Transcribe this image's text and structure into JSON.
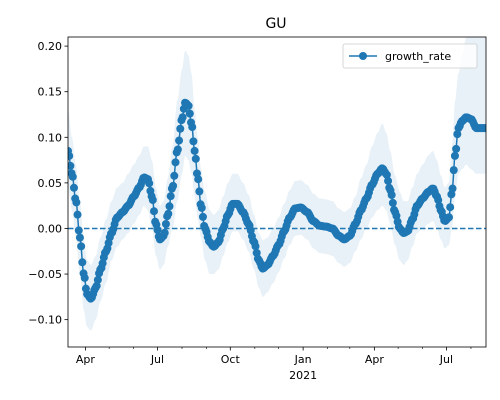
{
  "chart_data": {
    "type": "line",
    "title": "GU",
    "xlabel": "",
    "ylabel": "",
    "x_start": "2020-03-10",
    "x_end": "2021-08-20",
    "ylim": [
      -0.13,
      0.21
    ],
    "x_ticks": [
      {
        "date": "2020-04-01",
        "label": "Apr",
        "sublabel": ""
      },
      {
        "date": "2020-07-01",
        "label": "Jul",
        "sublabel": ""
      },
      {
        "date": "2020-10-01",
        "label": "Oct",
        "sublabel": ""
      },
      {
        "date": "2021-01-01",
        "label": "Jan",
        "sublabel": "2021"
      },
      {
        "date": "2021-04-01",
        "label": "Apr",
        "sublabel": ""
      },
      {
        "date": "2021-07-01",
        "label": "Jul",
        "sublabel": ""
      }
    ],
    "x_minor_ticks": [
      "2020-05-01",
      "2020-06-01",
      "2020-08-01",
      "2020-09-01",
      "2020-11-01",
      "2020-12-01",
      "2021-02-01",
      "2021-03-01",
      "2021-05-01",
      "2021-06-01",
      "2021-08-01"
    ],
    "y_ticks": [
      -0.1,
      -0.05,
      0.0,
      0.05,
      0.1,
      0.15,
      0.2
    ],
    "y_tick_labels": [
      "−0.10",
      "−0.05",
      "0.00",
      "0.05",
      "0.10",
      "0.15",
      "0.20"
    ],
    "reference_line": {
      "y": 0.0,
      "style": "dashed"
    },
    "legend": {
      "position": "upper-right",
      "entries": [
        "growth_rate"
      ]
    },
    "series": [
      {
        "name": "growth_rate",
        "color": "#1f77b4",
        "band_color": "#1f77b4",
        "marker": "circle",
        "points": [
          {
            "x": "2020-03-10",
            "y": 0.085,
            "lo": 0.045,
            "hi": 0.13
          },
          {
            "x": "2020-03-15",
            "y": 0.06,
            "lo": 0.02,
            "hi": 0.1
          },
          {
            "x": "2020-03-20",
            "y": 0.03,
            "lo": -0.01,
            "hi": 0.07
          },
          {
            "x": "2020-03-25",
            "y": -0.01,
            "lo": -0.05,
            "hi": 0.03
          },
          {
            "x": "2020-03-30",
            "y": -0.05,
            "lo": -0.09,
            "hi": -0.01
          },
          {
            "x": "2020-04-03",
            "y": -0.072,
            "lo": -0.108,
            "hi": -0.035
          },
          {
            "x": "2020-04-08",
            "y": -0.077,
            "lo": -0.112,
            "hi": -0.04
          },
          {
            "x": "2020-04-14",
            "y": -0.065,
            "lo": -0.1,
            "hi": -0.03
          },
          {
            "x": "2020-04-20",
            "y": -0.045,
            "lo": -0.08,
            "hi": -0.01
          },
          {
            "x": "2020-04-27",
            "y": -0.025,
            "lo": -0.06,
            "hi": 0.01
          },
          {
            "x": "2020-05-04",
            "y": -0.005,
            "lo": -0.035,
            "hi": 0.03
          },
          {
            "x": "2020-05-11",
            "y": 0.012,
            "lo": -0.02,
            "hi": 0.045
          },
          {
            "x": "2020-05-18",
            "y": 0.018,
            "lo": -0.012,
            "hi": 0.05
          },
          {
            "x": "2020-05-25",
            "y": 0.025,
            "lo": -0.005,
            "hi": 0.06
          },
          {
            "x": "2020-06-01",
            "y": 0.035,
            "lo": 0.005,
            "hi": 0.07
          },
          {
            "x": "2020-06-08",
            "y": 0.045,
            "lo": 0.015,
            "hi": 0.08
          },
          {
            "x": "2020-06-14",
            "y": 0.056,
            "lo": 0.025,
            "hi": 0.09
          },
          {
            "x": "2020-06-19",
            "y": 0.054,
            "lo": 0.02,
            "hi": 0.09
          },
          {
            "x": "2020-06-24",
            "y": 0.035,
            "lo": 0.0,
            "hi": 0.075
          },
          {
            "x": "2020-06-29",
            "y": 0.005,
            "lo": -0.03,
            "hi": 0.045
          },
          {
            "x": "2020-07-04",
            "y": -0.012,
            "lo": -0.045,
            "hi": 0.025
          },
          {
            "x": "2020-07-09",
            "y": -0.008,
            "lo": -0.04,
            "hi": 0.03
          },
          {
            "x": "2020-07-14",
            "y": 0.015,
            "lo": -0.02,
            "hi": 0.055
          },
          {
            "x": "2020-07-20",
            "y": 0.045,
            "lo": 0.0,
            "hi": 0.09
          },
          {
            "x": "2020-07-26",
            "y": 0.085,
            "lo": 0.03,
            "hi": 0.14
          },
          {
            "x": "2020-08-01",
            "y": 0.12,
            "lo": 0.06,
            "hi": 0.175
          },
          {
            "x": "2020-08-05",
            "y": 0.138,
            "lo": 0.08,
            "hi": 0.195
          },
          {
            "x": "2020-08-09",
            "y": 0.135,
            "lo": 0.075,
            "hi": 0.19
          },
          {
            "x": "2020-08-13",
            "y": 0.115,
            "lo": 0.06,
            "hi": 0.17
          },
          {
            "x": "2020-08-17",
            "y": 0.085,
            "lo": 0.035,
            "hi": 0.13
          },
          {
            "x": "2020-08-21",
            "y": 0.055,
            "lo": 0.01,
            "hi": 0.1
          },
          {
            "x": "2020-08-25",
            "y": 0.025,
            "lo": -0.01,
            "hi": 0.065
          },
          {
            "x": "2020-08-30",
            "y": 0.0,
            "lo": -0.035,
            "hi": 0.04
          },
          {
            "x": "2020-09-05",
            "y": -0.015,
            "lo": -0.05,
            "hi": 0.02
          },
          {
            "x": "2020-09-10",
            "y": -0.02,
            "lo": -0.05,
            "hi": 0.015
          },
          {
            "x": "2020-09-16",
            "y": -0.015,
            "lo": -0.045,
            "hi": 0.02
          },
          {
            "x": "2020-09-22",
            "y": 0.0,
            "lo": -0.03,
            "hi": 0.035
          },
          {
            "x": "2020-09-28",
            "y": 0.015,
            "lo": -0.015,
            "hi": 0.05
          },
          {
            "x": "2020-10-04",
            "y": 0.027,
            "lo": -0.003,
            "hi": 0.06
          },
          {
            "x": "2020-10-10",
            "y": 0.027,
            "lo": -0.003,
            "hi": 0.06
          },
          {
            "x": "2020-10-17",
            "y": 0.018,
            "lo": -0.012,
            "hi": 0.05
          },
          {
            "x": "2020-10-24",
            "y": 0.005,
            "lo": -0.025,
            "hi": 0.037
          },
          {
            "x": "2020-10-31",
            "y": -0.015,
            "lo": -0.045,
            "hi": 0.015
          },
          {
            "x": "2020-11-06",
            "y": -0.035,
            "lo": -0.065,
            "hi": -0.005
          },
          {
            "x": "2020-11-11",
            "y": -0.044,
            "lo": -0.075,
            "hi": -0.013
          },
          {
            "x": "2020-11-17",
            "y": -0.04,
            "lo": -0.07,
            "hi": -0.01
          },
          {
            "x": "2020-11-24",
            "y": -0.03,
            "lo": -0.06,
            "hi": 0.0
          },
          {
            "x": "2020-12-01",
            "y": -0.018,
            "lo": -0.048,
            "hi": 0.012
          },
          {
            "x": "2020-12-08",
            "y": -0.003,
            "lo": -0.033,
            "hi": 0.027
          },
          {
            "x": "2020-12-15",
            "y": 0.012,
            "lo": -0.018,
            "hi": 0.042
          },
          {
            "x": "2020-12-22",
            "y": 0.022,
            "lo": -0.008,
            "hi": 0.052
          },
          {
            "x": "2020-12-29",
            "y": 0.023,
            "lo": -0.007,
            "hi": 0.053
          },
          {
            "x": "2021-01-06",
            "y": 0.018,
            "lo": -0.012,
            "hi": 0.048
          },
          {
            "x": "2021-01-14",
            "y": 0.008,
            "lo": -0.022,
            "hi": 0.038
          },
          {
            "x": "2021-01-22",
            "y": 0.003,
            "lo": -0.027,
            "hi": 0.033
          },
          {
            "x": "2021-01-30",
            "y": 0.002,
            "lo": -0.028,
            "hi": 0.032
          },
          {
            "x": "2021-02-07",
            "y": 0.0,
            "lo": -0.03,
            "hi": 0.03
          },
          {
            "x": "2021-02-15",
            "y": -0.008,
            "lo": -0.038,
            "hi": 0.022
          },
          {
            "x": "2021-02-22",
            "y": -0.012,
            "lo": -0.042,
            "hi": 0.018
          },
          {
            "x": "2021-03-01",
            "y": -0.008,
            "lo": -0.038,
            "hi": 0.022
          },
          {
            "x": "2021-03-08",
            "y": 0.005,
            "lo": -0.025,
            "hi": 0.035
          },
          {
            "x": "2021-03-15",
            "y": 0.02,
            "lo": -0.012,
            "hi": 0.055
          },
          {
            "x": "2021-03-22",
            "y": 0.033,
            "lo": 0.0,
            "hi": 0.07
          },
          {
            "x": "2021-03-29",
            "y": 0.048,
            "lo": 0.012,
            "hi": 0.09
          },
          {
            "x": "2021-04-05",
            "y": 0.06,
            "lo": 0.02,
            "hi": 0.105
          },
          {
            "x": "2021-04-11",
            "y": 0.066,
            "lo": 0.025,
            "hi": 0.115
          },
          {
            "x": "2021-04-16",
            "y": 0.06,
            "lo": 0.02,
            "hi": 0.105
          },
          {
            "x": "2021-04-21",
            "y": 0.042,
            "lo": 0.005,
            "hi": 0.085
          },
          {
            "x": "2021-04-27",
            "y": 0.018,
            "lo": -0.018,
            "hi": 0.058
          },
          {
            "x": "2021-05-03",
            "y": 0.0,
            "lo": -0.035,
            "hi": 0.04
          },
          {
            "x": "2021-05-08",
            "y": -0.005,
            "lo": -0.04,
            "hi": 0.03
          },
          {
            "x": "2021-05-13",
            "y": -0.003,
            "lo": -0.035,
            "hi": 0.03
          },
          {
            "x": "2021-05-19",
            "y": 0.01,
            "lo": -0.02,
            "hi": 0.045
          },
          {
            "x": "2021-05-25",
            "y": 0.025,
            "lo": -0.005,
            "hi": 0.06
          },
          {
            "x": "2021-06-01",
            "y": 0.033,
            "lo": 0.0,
            "hi": 0.07
          },
          {
            "x": "2021-06-08",
            "y": 0.04,
            "lo": 0.005,
            "hi": 0.08
          },
          {
            "x": "2021-06-14",
            "y": 0.044,
            "lo": 0.008,
            "hi": 0.085
          },
          {
            "x": "2021-06-19",
            "y": 0.035,
            "lo": 0.0,
            "hi": 0.075
          },
          {
            "x": "2021-06-24",
            "y": 0.02,
            "lo": -0.012,
            "hi": 0.058
          },
          {
            "x": "2021-06-29",
            "y": 0.008,
            "lo": -0.022,
            "hi": 0.045
          },
          {
            "x": "2021-07-04",
            "y": 0.012,
            "lo": -0.018,
            "hi": 0.05
          },
          {
            "x": "2021-07-08",
            "y": 0.04,
            "lo": 0.0,
            "hi": 0.09
          },
          {
            "x": "2021-07-12",
            "y": 0.08,
            "lo": 0.035,
            "hi": 0.14
          },
          {
            "x": "2021-07-16",
            "y": 0.11,
            "lo": 0.06,
            "hi": 0.17
          },
          {
            "x": "2021-07-21",
            "y": 0.118,
            "lo": 0.065,
            "hi": 0.19
          },
          {
            "x": "2021-07-26",
            "y": 0.122,
            "lo": 0.07,
            "hi": 0.21
          },
          {
            "x": "2021-08-01",
            "y": 0.12,
            "lo": 0.065,
            "hi": 0.21
          },
          {
            "x": "2021-08-08",
            "y": 0.11,
            "lo": 0.06,
            "hi": 0.21
          },
          {
            "x": "2021-08-20",
            "y": 0.11,
            "lo": 0.06,
            "hi": 0.21
          }
        ]
      }
    ]
  }
}
